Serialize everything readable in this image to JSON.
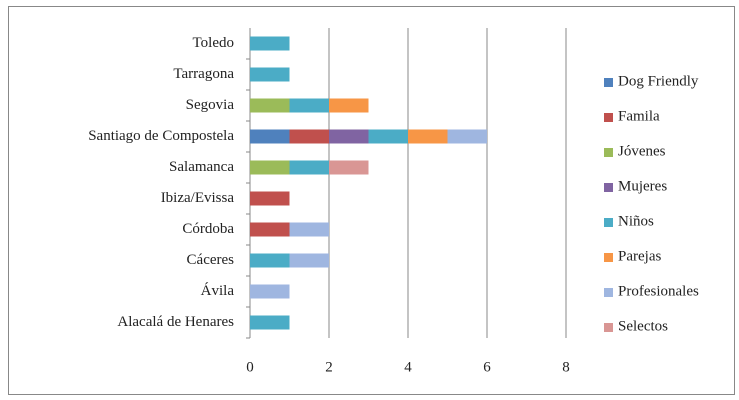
{
  "chart_data": {
    "type": "bar",
    "orientation": "horizontal",
    "stacked": true,
    "categories": [
      "Alacalá de Henares",
      "Ávila",
      "Cáceres",
      "Córdoba",
      "Ibiza/Evissa",
      "Salamanca",
      "Santiago de Compostela",
      "Segovia",
      "Tarragona",
      "Toledo"
    ],
    "series": [
      {
        "name": "Dog Friendly",
        "color": "#4f81bd",
        "values": [
          0,
          0,
          0,
          0,
          0,
          0,
          1,
          0,
          0,
          0
        ]
      },
      {
        "name": "Famila",
        "color": "#c0504d",
        "values": [
          0,
          0,
          0,
          1,
          1,
          0,
          1,
          0,
          0,
          0
        ]
      },
      {
        "name": "Jóvenes",
        "color": "#9bbb59",
        "values": [
          0,
          0,
          0,
          0,
          0,
          1,
          0,
          1,
          0,
          0
        ]
      },
      {
        "name": "Mujeres",
        "color": "#8064a2",
        "values": [
          0,
          0,
          0,
          0,
          0,
          0,
          1,
          0,
          0,
          0
        ]
      },
      {
        "name": "Niños",
        "color": "#4bacc6",
        "values": [
          1,
          0,
          1,
          0,
          0,
          1,
          1,
          1,
          1,
          1
        ]
      },
      {
        "name": "Parejas",
        "color": "#f79646",
        "values": [
          0,
          0,
          0,
          0,
          0,
          0,
          1,
          1,
          0,
          0
        ]
      },
      {
        "name": "Profesionales",
        "color": "#9fb6e0",
        "values": [
          0,
          1,
          1,
          1,
          0,
          0,
          1,
          0,
          0,
          0
        ]
      },
      {
        "name": "Selectos",
        "color": "#d99694",
        "values": [
          0,
          0,
          0,
          0,
          0,
          1,
          0,
          0,
          0,
          0
        ]
      }
    ],
    "xlim": [
      0,
      8
    ],
    "xticks": [
      0,
      2,
      4,
      6,
      8
    ],
    "grid": true,
    "legend": "right"
  }
}
